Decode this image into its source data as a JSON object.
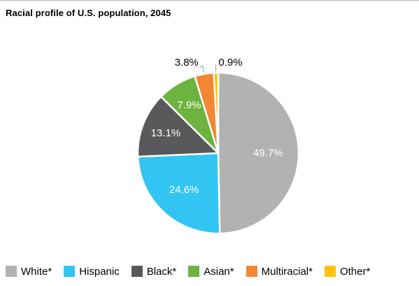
{
  "title": "Racial profile of U.S. population, 2045",
  "chart_data": {
    "type": "pie",
    "title": "Racial profile of U.S. population, 2045",
    "slices": [
      {
        "label": "White*",
        "value": 49.7,
        "display": "49.7%",
        "color": "#b2b2b2"
      },
      {
        "label": "Hispanic",
        "value": 24.6,
        "display": "24.6%",
        "color": "#32c5f4"
      },
      {
        "label": "Black*",
        "value": 13.1,
        "display": "13.1%",
        "color": "#58595b"
      },
      {
        "label": "Asian*",
        "value": 7.9,
        "display": "7.9%",
        "color": "#6db33f"
      },
      {
        "label": "Multiracial*",
        "value": 3.8,
        "display": "3.8%",
        "color": "#f58634"
      },
      {
        "label": "Other*",
        "value": 0.9,
        "display": "0.9%",
        "color": "#ffc20e"
      }
    ],
    "legend_position": "bottom"
  }
}
